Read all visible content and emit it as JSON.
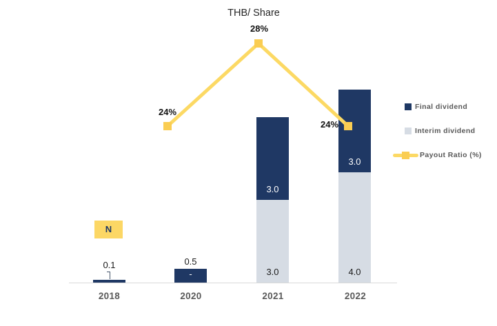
{
  "chart_data": {
    "type": "bar",
    "subtype": "stacked-column-with-line-overlay",
    "title": "THB/ Share",
    "categories": [
      "2018",
      "2020",
      "2021",
      "2022"
    ],
    "grid": false,
    "legend_position": "right",
    "series": [
      {
        "name": "Interim dividend",
        "color": "#D6DCE4",
        "values": [
          0,
          0,
          3.0,
          4.0
        ]
      },
      {
        "name": "Final dividend",
        "color": "#1F3864",
        "values": [
          0.1,
          0.5,
          3.0,
          3.0
        ]
      }
    ],
    "bars": [
      {
        "category": "2018",
        "outside_label": "0.1",
        "leader_line": true,
        "segments": [
          {
            "series": "final",
            "value": 0.1
          }
        ]
      },
      {
        "category": "2020",
        "outside_label": "0.5",
        "leader_line": false,
        "segments": [
          {
            "series": "final",
            "value": 0.5,
            "label": "-",
            "label_style": "light-on-dark",
            "label_pos": "center"
          }
        ]
      },
      {
        "category": "2021",
        "segments": [
          {
            "series": "interim",
            "value": 3.0,
            "label": "3.0",
            "label_style": "dark",
            "label_pos": "bottom"
          },
          {
            "series": "final",
            "value": 3.0,
            "label": "3.0",
            "label_style": "light-on-dark",
            "label_pos": "bottom"
          }
        ]
      },
      {
        "category": "2022",
        "segments": [
          {
            "series": "interim",
            "value": 4.0,
            "label": "4.0",
            "label_style": "dark",
            "label_pos": "bottom"
          },
          {
            "series": "final",
            "value": 3.0,
            "label": "3.0",
            "label_style": "light-on-dark",
            "label_pos": "bottom"
          }
        ]
      }
    ],
    "line_series": {
      "name": "Payout Ratio (%)",
      "color": "#FCD964",
      "marker_color": "#FACD52",
      "points": [
        {
          "category": "2020",
          "value_pct": 24,
          "label": "24%"
        },
        {
          "category": "2021",
          "value_pct": 28,
          "label": "28%"
        },
        {
          "category": "2022",
          "value_pct": 24,
          "label": "24%"
        }
      ],
      "na_badge": {
        "category": "2018",
        "text": "N",
        "bg_color": "#FCD765"
      }
    },
    "legend": {
      "items": [
        {
          "label": "Final dividend",
          "swatch": "navy-square"
        },
        {
          "label": "Interim dividend",
          "swatch": "light-square"
        },
        {
          "label": "Payout Ratio (%)",
          "swatch": "yellow-line-marker"
        }
      ]
    },
    "colors": {
      "final_dividend": "#1F3864",
      "interim_dividend": "#D6DCE4",
      "payout_line": "#FCD964",
      "axis_line": "#D9D9D9",
      "axis_text": "#595959",
      "legend_text": "#595959"
    }
  }
}
